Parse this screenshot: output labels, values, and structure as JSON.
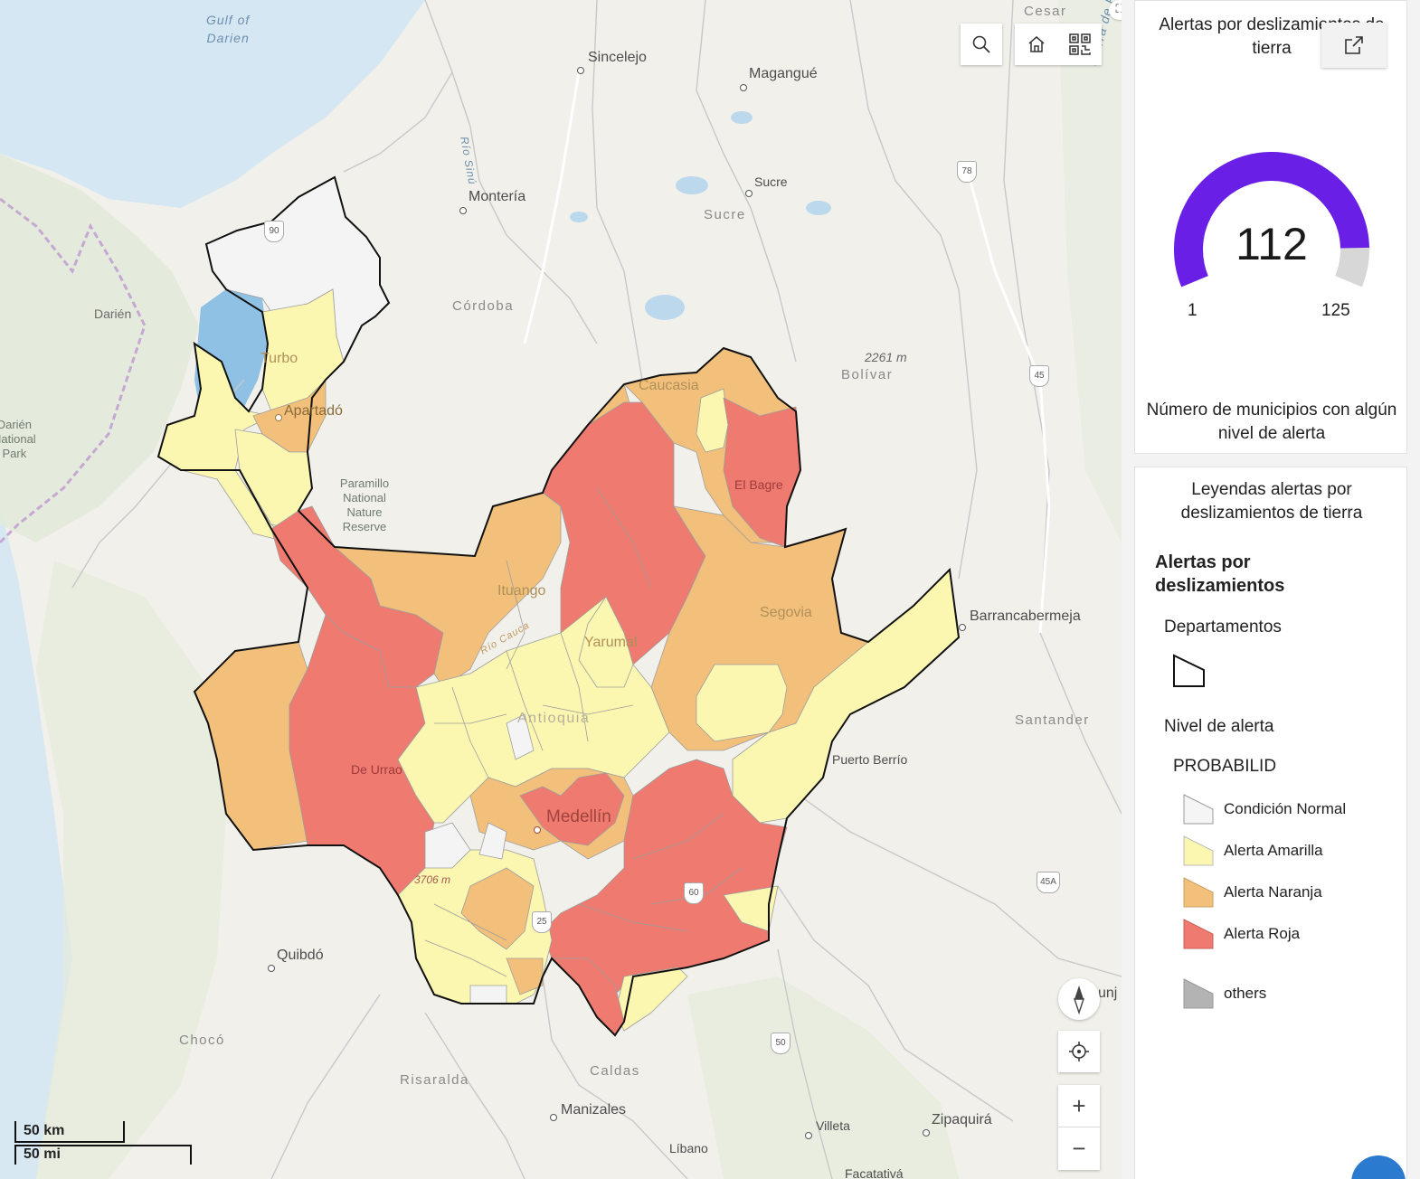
{
  "map": {
    "places": {
      "gulf": "Gulf of\nDarien",
      "cesar": "Cesar",
      "sincelejo": "Sincelejo",
      "magangue": "Magangué",
      "monteria": "Montería",
      "sucre_city": "Sucre",
      "sucre_region": "Sucre",
      "cordoba": "Córdoba",
      "bolivar": "Bolívar",
      "bolivar_peak": "2261 m",
      "darien": "Darién",
      "darien_park": "Darién\nNational\nPark",
      "paramillo": "Paramillo\nNational\nNature\nReserve",
      "barrancabermeja": "Barrancabermeja",
      "santander": "Santander",
      "puerto_berrio": "Puerto Berrío",
      "quibdo": "Quibdó",
      "choco": "Chocó",
      "risaralda": "Risaralda",
      "caldas": "Caldas",
      "manizales": "Manizales",
      "villeta": "Villeta",
      "zipaquira": "Zipaquirá",
      "libano": "Líbano",
      "facatativa": "Facatativá",
      "tunja_partial": "unj",
      "sierra": "Sierra de P",
      "rio_sinu": "Río Sinú",
      "rio_cauca": "Río Cauca",
      "turbo": "Turbo",
      "apartado": "Apartadó",
      "caucasia": "Caucasia",
      "el_bagre": "El Bagre",
      "ituango": "Ituango",
      "segovia": "Segovia",
      "yarumal": "Yarumal",
      "antioquia": "Antioquia",
      "de_urrao": "De Urrao",
      "medellin": "Medellín",
      "peak_3706": "3706 m"
    },
    "shields": [
      "90",
      "78",
      "45",
      "45A",
      "60",
      "25",
      "50"
    ],
    "scalebar": {
      "km": "50 km",
      "mi": "50 mi"
    },
    "buttons": {
      "search": "search-icon",
      "home": "home-icon",
      "qr": "qr-code-icon",
      "compass": "compass-icon",
      "locate": "locate-icon",
      "zoom_in": "+",
      "zoom_out": "−"
    }
  },
  "gauge": {
    "title": "Alertas por deslizamientos de tierra",
    "value": "112",
    "min": "1",
    "max": "125",
    "description": "Número de municipios con algún nivel de alerta",
    "fraction": 0.895,
    "color": "#6a1fe6",
    "track_color": "#d7d7d7"
  },
  "legend": {
    "title": "Leyendas alertas por deslizamientos de tierra",
    "layer": "Alertas por deslizamientos",
    "departamentos": "Departamentos",
    "nivel": "Nivel de alerta",
    "field": "PROBABILID",
    "items": [
      {
        "label": "Condición Normal",
        "color": "#f5f5f5"
      },
      {
        "label": "Alerta Amarilla",
        "color": "#fbf7b0"
      },
      {
        "label": "Alerta Naranja",
        "color": "#f2c07a"
      },
      {
        "label": "Alerta Roja",
        "color": "#ee7a70"
      },
      {
        "label": "others",
        "color": "#b3b3b3"
      }
    ]
  }
}
